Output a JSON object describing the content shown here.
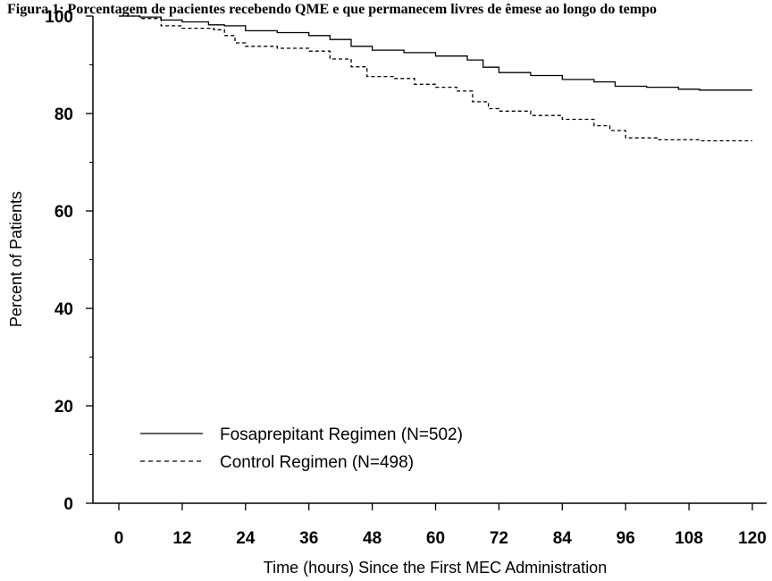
{
  "chart_data": {
    "type": "line",
    "title": "Figura 1: Porcentagem de pacientes recebendo QME e que permanecem livres de êmese ao longo do tempo",
    "xlabel": "Time (hours) Since the First MEC Administration",
    "ylabel": "Percent of Patients",
    "xlim": [
      0,
      120
    ],
    "ylim": [
      0,
      100
    ],
    "x_ticks": [
      0,
      12,
      24,
      36,
      48,
      60,
      72,
      84,
      96,
      108,
      120
    ],
    "y_ticks": [
      0,
      20,
      40,
      60,
      80,
      100
    ],
    "grid": false,
    "legend_position": "bottom-left",
    "series": [
      {
        "name": "Fosaprepitant Regimen (N=502)",
        "line_style": "solid",
        "color": "#000000",
        "points": [
          [
            0,
            100
          ],
          [
            4,
            99.8
          ],
          [
            8,
            99.2
          ],
          [
            12,
            98.8
          ],
          [
            17,
            98.2
          ],
          [
            20,
            98
          ],
          [
            24,
            97
          ],
          [
            30,
            96.6
          ],
          [
            36,
            96
          ],
          [
            40,
            95.2
          ],
          [
            44,
            93.8
          ],
          [
            48,
            93
          ],
          [
            54,
            92.5
          ],
          [
            60,
            91.8
          ],
          [
            66,
            91
          ],
          [
            69,
            89.5
          ],
          [
            72,
            88.4
          ],
          [
            78,
            87.8
          ],
          [
            84,
            87
          ],
          [
            90,
            86.5
          ],
          [
            94,
            85.6
          ],
          [
            100,
            85.4
          ],
          [
            106,
            85
          ],
          [
            110,
            84.8
          ],
          [
            120,
            84.8
          ]
        ]
      },
      {
        "name": "Control Regimen (N=498)",
        "line_style": "dashed",
        "color": "#000000",
        "points": [
          [
            0,
            100
          ],
          [
            4,
            99.5
          ],
          [
            8,
            98
          ],
          [
            12,
            97.5
          ],
          [
            18,
            97.2
          ],
          [
            20,
            96
          ],
          [
            22,
            94.5
          ],
          [
            24,
            93.8
          ],
          [
            30,
            93.4
          ],
          [
            36,
            92.8
          ],
          [
            40,
            91.2
          ],
          [
            44,
            89.6
          ],
          [
            47,
            87.6
          ],
          [
            52,
            87.2
          ],
          [
            56,
            86
          ],
          [
            60,
            85.4
          ],
          [
            64,
            84.6
          ],
          [
            67,
            82.4
          ],
          [
            70,
            81
          ],
          [
            72,
            80.5
          ],
          [
            78,
            79.6
          ],
          [
            84,
            78.8
          ],
          [
            90,
            77.5
          ],
          [
            93,
            76.5
          ],
          [
            96,
            75
          ],
          [
            102,
            74.6
          ],
          [
            110,
            74.4
          ],
          [
            120,
            74.4
          ]
        ]
      }
    ]
  }
}
